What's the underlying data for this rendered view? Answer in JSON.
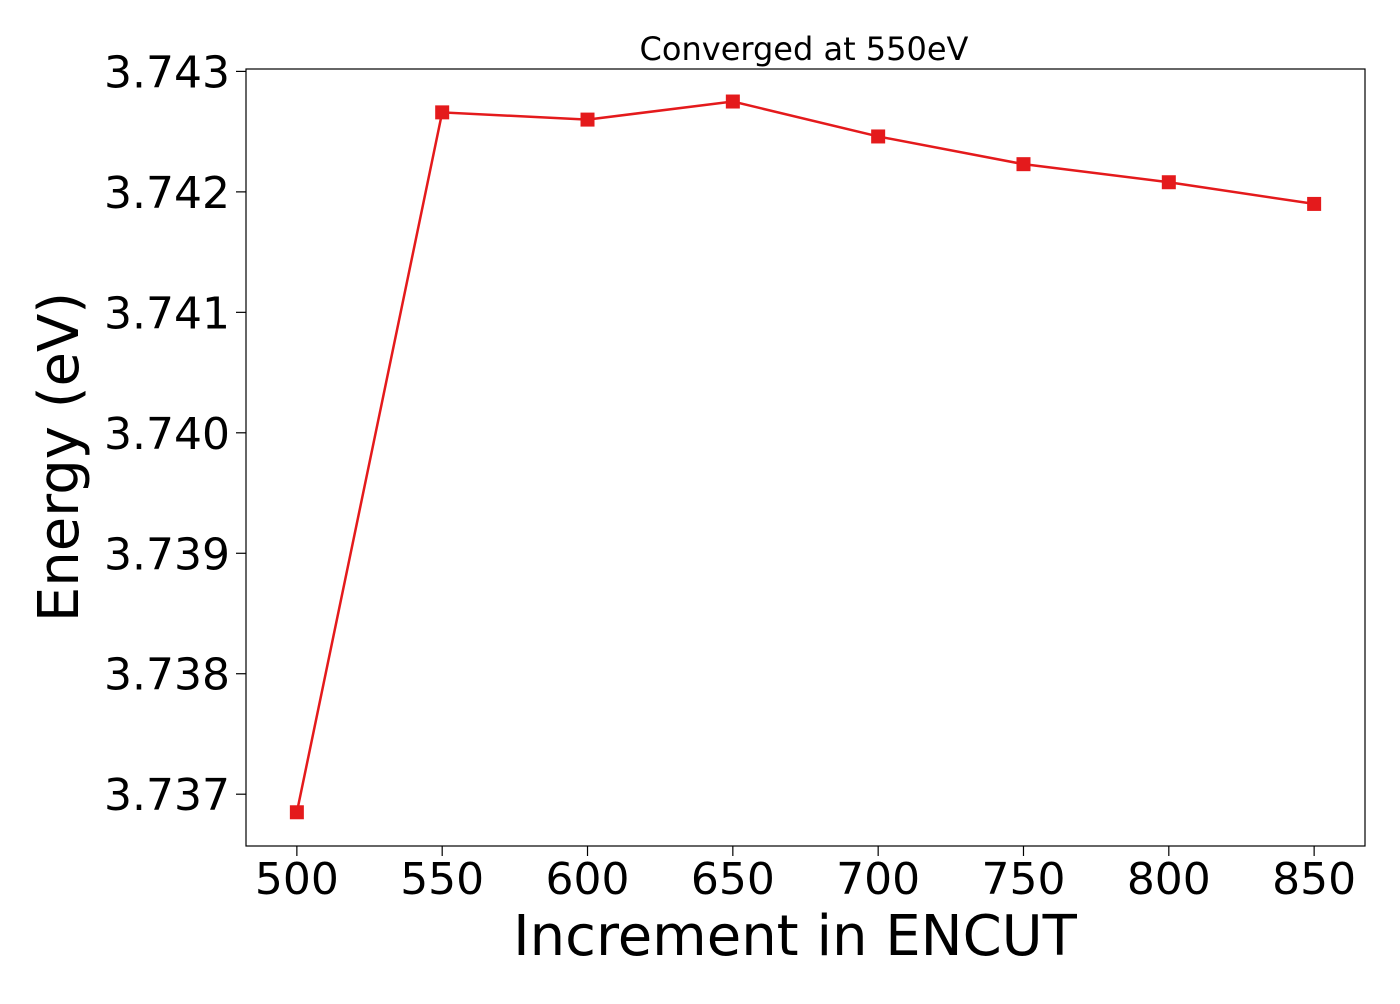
{
  "chart_data": {
    "type": "line",
    "title": "Converged at 550eV",
    "xlabel": "Increment in ENCUT",
    "ylabel": "Energy (eV)",
    "x": [
      500,
      550,
      600,
      650,
      700,
      750,
      800,
      850
    ],
    "series": [
      {
        "values": [
          3.73685,
          3.74266,
          3.7426,
          3.74275,
          3.74246,
          3.74223,
          3.74208,
          3.7419
        ],
        "color": "#e41a1c",
        "marker": "square"
      }
    ],
    "x_ticks": [
      "500",
      "550",
      "600",
      "650",
      "700",
      "750",
      "800",
      "850"
    ],
    "y_ticks": [
      "3.737",
      "3.738",
      "3.739",
      "3.740",
      "3.741",
      "3.742",
      "3.743"
    ],
    "x_tick_values": [
      500,
      550,
      600,
      650,
      700,
      750,
      800,
      850
    ],
    "y_tick_values": [
      3.737,
      3.738,
      3.739,
      3.74,
      3.741,
      3.742,
      3.743
    ],
    "xlim": [
      482.5,
      867.5
    ],
    "ylim": [
      3.73657,
      3.74302
    ],
    "grid": false,
    "legend": "none"
  }
}
